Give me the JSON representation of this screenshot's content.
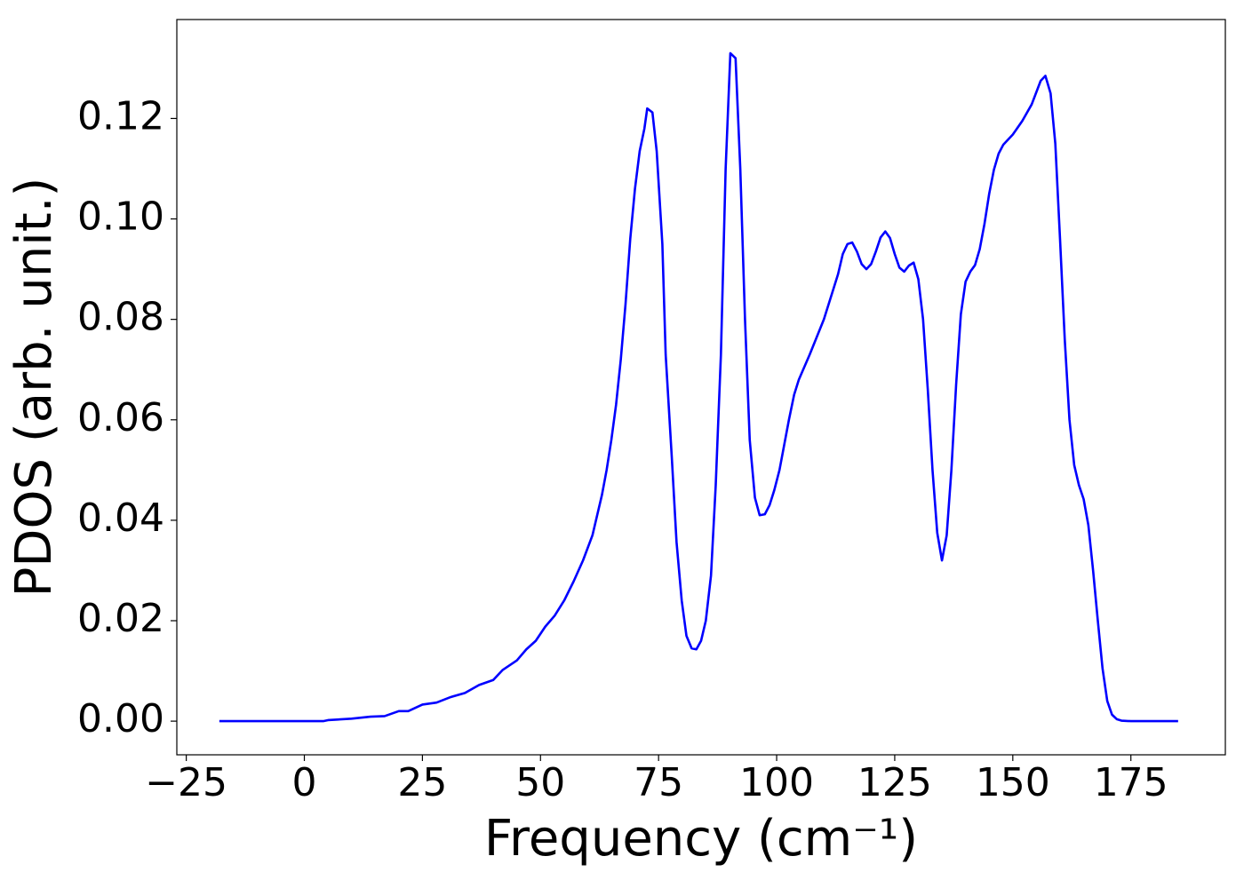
{
  "chart_data": {
    "type": "line",
    "xlabel": "Frequency (cm⁻¹)",
    "ylabel": "PDOS (arb. unit.)",
    "xlim": [
      -27,
      195
    ],
    "ylim": [
      -0.0067,
      0.1397
    ],
    "xticks": [
      {
        "value": -25,
        "label": "−25"
      },
      0,
      25,
      50,
      75,
      100,
      125,
      150,
      175
    ],
    "yticks": [
      {
        "value": 0,
        "label": "0.00"
      },
      {
        "value": 0.02,
        "label": "0.02"
      },
      {
        "value": 0.04,
        "label": "0.04"
      },
      {
        "value": 0.06,
        "label": "0.06"
      },
      {
        "value": 0.08,
        "label": "0.08"
      },
      {
        "value": 0.1,
        "label": "0.10"
      },
      {
        "value": 0.12,
        "label": "0.12"
      }
    ],
    "grid": false,
    "series": [
      {
        "color": "#0000ff",
        "x": [
          -18,
          -10,
          0,
          4,
          5,
          10,
          14,
          17,
          20,
          22,
          25,
          28,
          31,
          34,
          37,
          40,
          42,
          45,
          47,
          49,
          51,
          53,
          55,
          57,
          59,
          61,
          63,
          64,
          65,
          66,
          67,
          68,
          69,
          70,
          71,
          72,
          72.6,
          73.7,
          74.6,
          75.8,
          76.5,
          77.8,
          78.8,
          79.9,
          80.9,
          82,
          83,
          84,
          85,
          86.1,
          87.1,
          88.2,
          89.2,
          90.2,
          91.3,
          92.3,
          93.3,
          94.3,
          95.4,
          96.4,
          97.5,
          98.5,
          99.5,
          100.6,
          101.6,
          102.6,
          103.7,
          104.7,
          107,
          110,
          112,
          113,
          114,
          115,
          116,
          117,
          118,
          119,
          120,
          121,
          122,
          123,
          124,
          125,
          126,
          127,
          128,
          129,
          130,
          131,
          132,
          133,
          134,
          135,
          136,
          137,
          138,
          139,
          140,
          141,
          142,
          143,
          144,
          145,
          146,
          147,
          148,
          150,
          152,
          154,
          155.9,
          156.9,
          158,
          159,
          160,
          161,
          162,
          163,
          164,
          165,
          166,
          167,
          168,
          169,
          170,
          171,
          172,
          173,
          175,
          185
        ],
        "values": [
          0,
          0,
          0,
          0,
          0.0002,
          0.0005,
          0.0009,
          0.001,
          0.002,
          0.002,
          0.0033,
          0.0037,
          0.0048,
          0.0056,
          0.0072,
          0.0082,
          0.0102,
          0.0121,
          0.0143,
          0.016,
          0.0188,
          0.021,
          0.024,
          0.0278,
          0.032,
          0.037,
          0.045,
          0.05,
          0.056,
          0.063,
          0.072,
          0.083,
          0.096,
          0.106,
          0.1135,
          0.118,
          0.122,
          0.1212,
          0.1135,
          0.095,
          0.073,
          0.0525,
          0.0357,
          0.024,
          0.017,
          0.0145,
          0.0143,
          0.016,
          0.02,
          0.029,
          0.047,
          0.073,
          0.11,
          0.133,
          0.132,
          0.11,
          0.08,
          0.056,
          0.0445,
          0.041,
          0.0412,
          0.043,
          0.046,
          0.05,
          0.055,
          0.06,
          0.065,
          0.068,
          0.073,
          0.08,
          0.086,
          0.089,
          0.093,
          0.095,
          0.0953,
          0.0935,
          0.091,
          0.09,
          0.091,
          0.0935,
          0.0963,
          0.0975,
          0.0962,
          0.093,
          0.0903,
          0.0895,
          0.0907,
          0.0913,
          0.088,
          0.08,
          0.066,
          0.05,
          0.0375,
          0.032,
          0.037,
          0.05,
          0.067,
          0.081,
          0.0875,
          0.0895,
          0.0908,
          0.094,
          0.099,
          0.105,
          0.1098,
          0.113,
          0.1148,
          0.1168,
          0.1195,
          0.1228,
          0.1275,
          0.1285,
          0.125,
          0.115,
          0.096,
          0.076,
          0.06,
          0.051,
          0.047,
          0.0442,
          0.039,
          0.03,
          0.02,
          0.0105,
          0.004,
          0.0013,
          0.0004,
          0.0001,
          0,
          0
        ]
      }
    ]
  }
}
